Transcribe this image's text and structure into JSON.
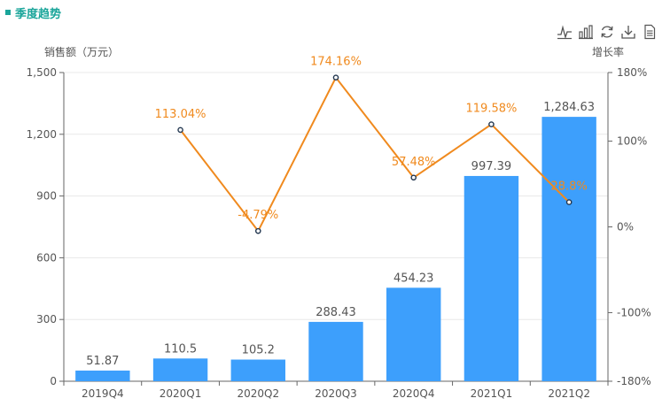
{
  "title": "季度趋势",
  "toolbox": {
    "icons": [
      "line-chart-icon",
      "bar-chart-icon",
      "restore-icon",
      "download-icon",
      "data-view-icon"
    ]
  },
  "colors": {
    "accent": "#1aa59a",
    "bar": "#3d9ffc",
    "line": "#f08a1e",
    "axis": "#666666",
    "grid": "#e8e8e8"
  },
  "chart_data": {
    "type": "bar",
    "categories": [
      "2019Q4",
      "2020Q1",
      "2020Q2",
      "2020Q3",
      "2020Q4",
      "2021Q1",
      "2021Q2"
    ],
    "ylabel_left": "销售额（万元）",
    "ylabel_right": "增长率",
    "ylim_left": [
      0,
      1500
    ],
    "yticks_left": [
      "0",
      "300",
      "600",
      "900",
      "1,200",
      "1,500"
    ],
    "ylim_right": [
      -180,
      180
    ],
    "yticks_right": [
      "-180%",
      "-100%",
      "0%",
      "100%",
      "180%"
    ],
    "series": [
      {
        "type": "bar",
        "axis": "left",
        "values": [
          51.87,
          110.5,
          105.2,
          288.43,
          454.23,
          997.39,
          1284.63
        ],
        "labels": [
          "51.87",
          "110.5",
          "105.2",
          "288.43",
          "454.23",
          "997.39",
          "1,284.63"
        ]
      },
      {
        "type": "line",
        "axis": "right",
        "values": [
          null,
          113.04,
          -4.79,
          174.16,
          57.48,
          119.58,
          28.8
        ],
        "labels": [
          "",
          "113.04%",
          "-4.79%",
          "174.16%",
          "57.48%",
          "119.58%",
          "28.8%"
        ]
      }
    ],
    "grid": true
  }
}
